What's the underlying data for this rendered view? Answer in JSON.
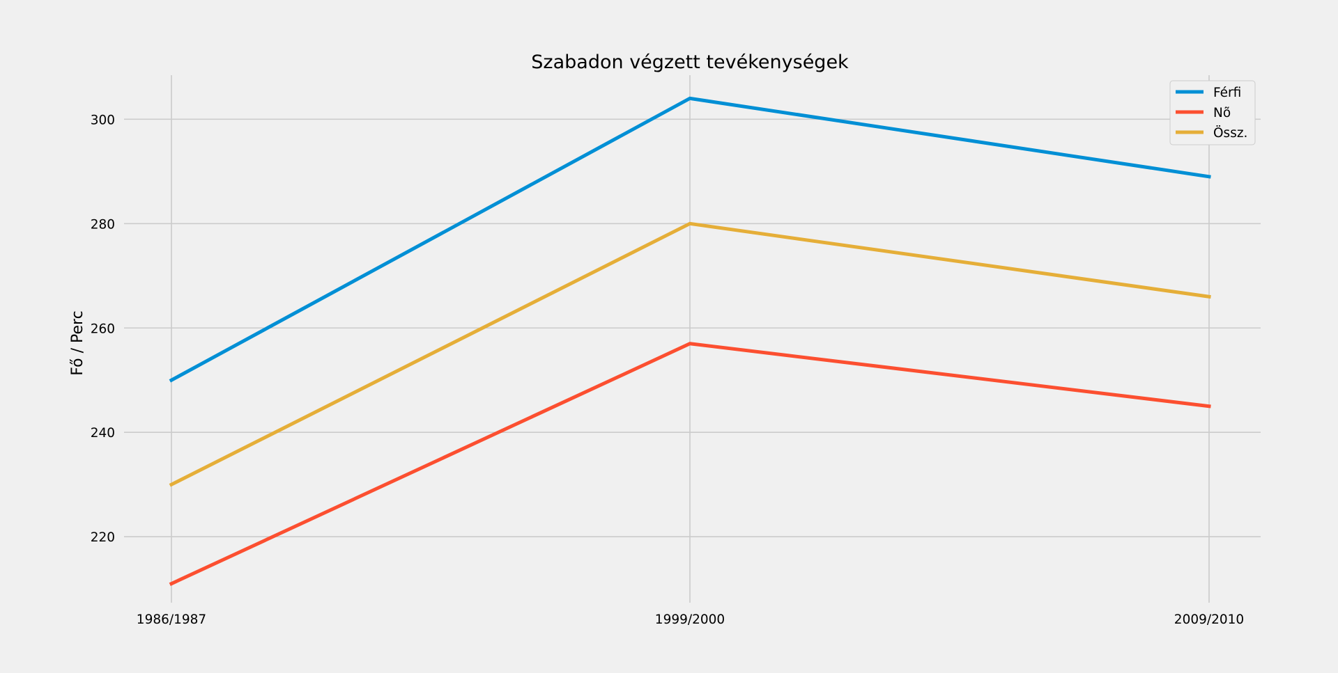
{
  "chart_data": {
    "type": "line",
    "title": "Szabadon végzett tevékenységek",
    "xlabel": "",
    "ylabel": "Fő / Perc",
    "categories": [
      "1986/1987",
      "1999/2000",
      "2009/2010"
    ],
    "series": [
      {
        "name": "Férfi",
        "values": [
          250,
          304,
          289
        ],
        "color": "#008fd5"
      },
      {
        "name": "Nõ",
        "values": [
          211,
          257,
          245
        ],
        "color": "#fc4f30"
      },
      {
        "name": "Össz.",
        "values": [
          230,
          280,
          266
        ],
        "color": "#e5ae38"
      }
    ],
    "ylim": [
      207.35,
      308.45
    ],
    "yticks": [
      220,
      240,
      260,
      280,
      300
    ],
    "grid": true,
    "legend_position": "upper right"
  }
}
